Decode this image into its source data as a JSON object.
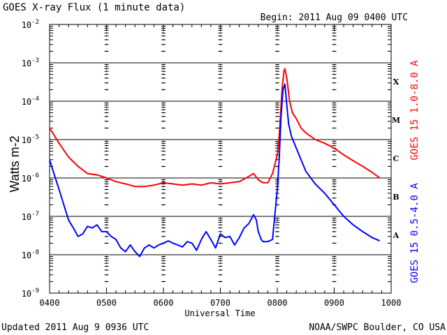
{
  "header": {
    "title": "GOES X-ray Flux (1 minute data)",
    "begin": "Begin: 2011 Aug 09 0400 UTC"
  },
  "footer": {
    "updated": "Updated 2011 Aug  9 0936 UTC",
    "credit": "NOAA/SWPC Boulder, CO USA"
  },
  "colors": {
    "long_channel": "#ff0000",
    "short_channel": "#0000ff",
    "axes": "#000000",
    "background": "#ffffff"
  },
  "chart_data": {
    "type": "line",
    "title": "GOES X-ray Flux (1 minute data)",
    "xlabel": "Universal Time",
    "ylabel": "Watts m-2",
    "y_scale": "log",
    "ylim": [
      1e-09,
      0.01
    ],
    "xlim": [
      "0400",
      "1000"
    ],
    "x_ticks": [
      "0400",
      "0500",
      "0600",
      "0700",
      "0800",
      "0900",
      "1000"
    ],
    "y_ticks": [
      {
        "base": "10",
        "exp": "-9"
      },
      {
        "base": "10",
        "exp": "-8"
      },
      {
        "base": "10",
        "exp": "-7"
      },
      {
        "base": "10",
        "exp": "-6"
      },
      {
        "base": "10",
        "exp": "-5"
      },
      {
        "base": "10",
        "exp": "-4"
      },
      {
        "base": "10",
        "exp": "-3"
      },
      {
        "base": "10",
        "exp": "-2"
      }
    ],
    "grid": "horizontal lines at each decade from 1e-8 to 1e-3",
    "flare_classes": [
      {
        "label": "A",
        "flux": 3.2e-08
      },
      {
        "label": "B",
        "flux": 3.2e-07
      },
      {
        "label": "C",
        "flux": 3.2e-06
      },
      {
        "label": "M",
        "flux": 3.2e-05
      },
      {
        "label": "X",
        "flux": 0.00032
      }
    ],
    "series": [
      {
        "name": "GOES 15 1.0-8.0 A",
        "color": "#ff0000",
        "x": [
          "04:00",
          "04:10",
          "04:20",
          "04:30",
          "04:40",
          "04:50",
          "05:00",
          "05:10",
          "05:20",
          "05:30",
          "05:40",
          "05:50",
          "06:00",
          "06:10",
          "06:20",
          "06:30",
          "06:40",
          "06:50",
          "07:00",
          "07:10",
          "07:20",
          "07:30",
          "07:35",
          "07:40",
          "07:45",
          "07:50",
          "07:55",
          "08:00",
          "08:02",
          "08:05",
          "08:07",
          "08:08",
          "08:10",
          "08:13",
          "08:16",
          "08:20",
          "08:25",
          "08:30",
          "08:40",
          "08:50",
          "09:00",
          "09:10",
          "09:20",
          "09:30",
          "09:40",
          "09:48"
        ],
        "values": [
          2e-05,
          8e-06,
          3.5e-06,
          2e-06,
          1.3e-06,
          1.2e-06,
          1e-06,
          8e-07,
          7e-07,
          6e-07,
          6e-07,
          6.5e-07,
          7.5e-07,
          7e-07,
          6.5e-07,
          7e-07,
          6.5e-07,
          7.5e-07,
          7e-07,
          7.5e-07,
          8e-07,
          1.1e-06,
          1.3e-06,
          9e-07,
          7.5e-07,
          7.5e-07,
          1.3e-06,
          4e-06,
          1.2e-05,
          0.0002,
          0.0006,
          0.0007,
          0.0004,
          0.0001,
          5e-05,
          3.5e-05,
          2e-05,
          1.5e-05,
          1e-05,
          8e-06,
          6e-06,
          4e-06,
          2.8e-06,
          2e-06,
          1.4e-06,
          1e-06
        ]
      },
      {
        "name": "GOES 15 0.5-4.0 A",
        "color": "#0000ff",
        "x": [
          "04:00",
          "04:05",
          "04:10",
          "04:15",
          "04:20",
          "04:25",
          "04:30",
          "04:35",
          "04:40",
          "04:45",
          "04:50",
          "04:55",
          "05:00",
          "05:05",
          "05:10",
          "05:15",
          "05:20",
          "05:25",
          "05:30",
          "05:35",
          "05:40",
          "05:45",
          "05:50",
          "05:55",
          "06:00",
          "06:05",
          "06:10",
          "06:15",
          "06:20",
          "06:25",
          "06:30",
          "06:35",
          "06:40",
          "06:45",
          "06:50",
          "06:55",
          "07:00",
          "07:05",
          "07:10",
          "07:15",
          "07:20",
          "07:25",
          "07:30",
          "07:35",
          "07:38",
          "07:40",
          "07:43",
          "07:45",
          "07:50",
          "07:55",
          "08:00",
          "08:02",
          "08:04",
          "08:06",
          "08:08",
          "08:10",
          "08:12",
          "08:15",
          "08:20",
          "08:25",
          "08:30",
          "08:40",
          "08:50",
          "09:00",
          "09:10",
          "09:20",
          "09:30",
          "09:40",
          "09:48"
        ],
        "values": [
          3e-06,
          1.2e-06,
          5e-07,
          2e-07,
          8e-08,
          5e-08,
          3e-08,
          3.5e-08,
          5.5e-08,
          5e-08,
          6e-08,
          4e-08,
          4e-08,
          3e-08,
          2.5e-08,
          1.5e-08,
          1.2e-08,
          1.8e-08,
          1.2e-08,
          9e-09,
          1.5e-08,
          1.8e-08,
          1.5e-08,
          1.8e-08,
          2e-08,
          2.3e-08,
          2e-08,
          1.8e-08,
          1.6e-08,
          2.2e-08,
          2e-08,
          1.3e-08,
          2.5e-08,
          4e-08,
          2.5e-08,
          1.5e-08,
          3.5e-08,
          2.8e-08,
          3e-08,
          1.8e-08,
          2.8e-08,
          5e-08,
          6.5e-08,
          1.1e-07,
          8e-08,
          4e-08,
          2.5e-08,
          2.2e-08,
          2.2e-08,
          2.5e-08,
          5e-07,
          3e-06,
          4e-05,
          0.0002,
          0.00028,
          8e-05,
          2.5e-05,
          1.2e-05,
          6e-06,
          3e-06,
          1.5e-06,
          7e-07,
          4e-07,
          2e-07,
          1e-07,
          6e-08,
          4e-08,
          2.8e-08,
          2.3e-08
        ]
      }
    ]
  }
}
